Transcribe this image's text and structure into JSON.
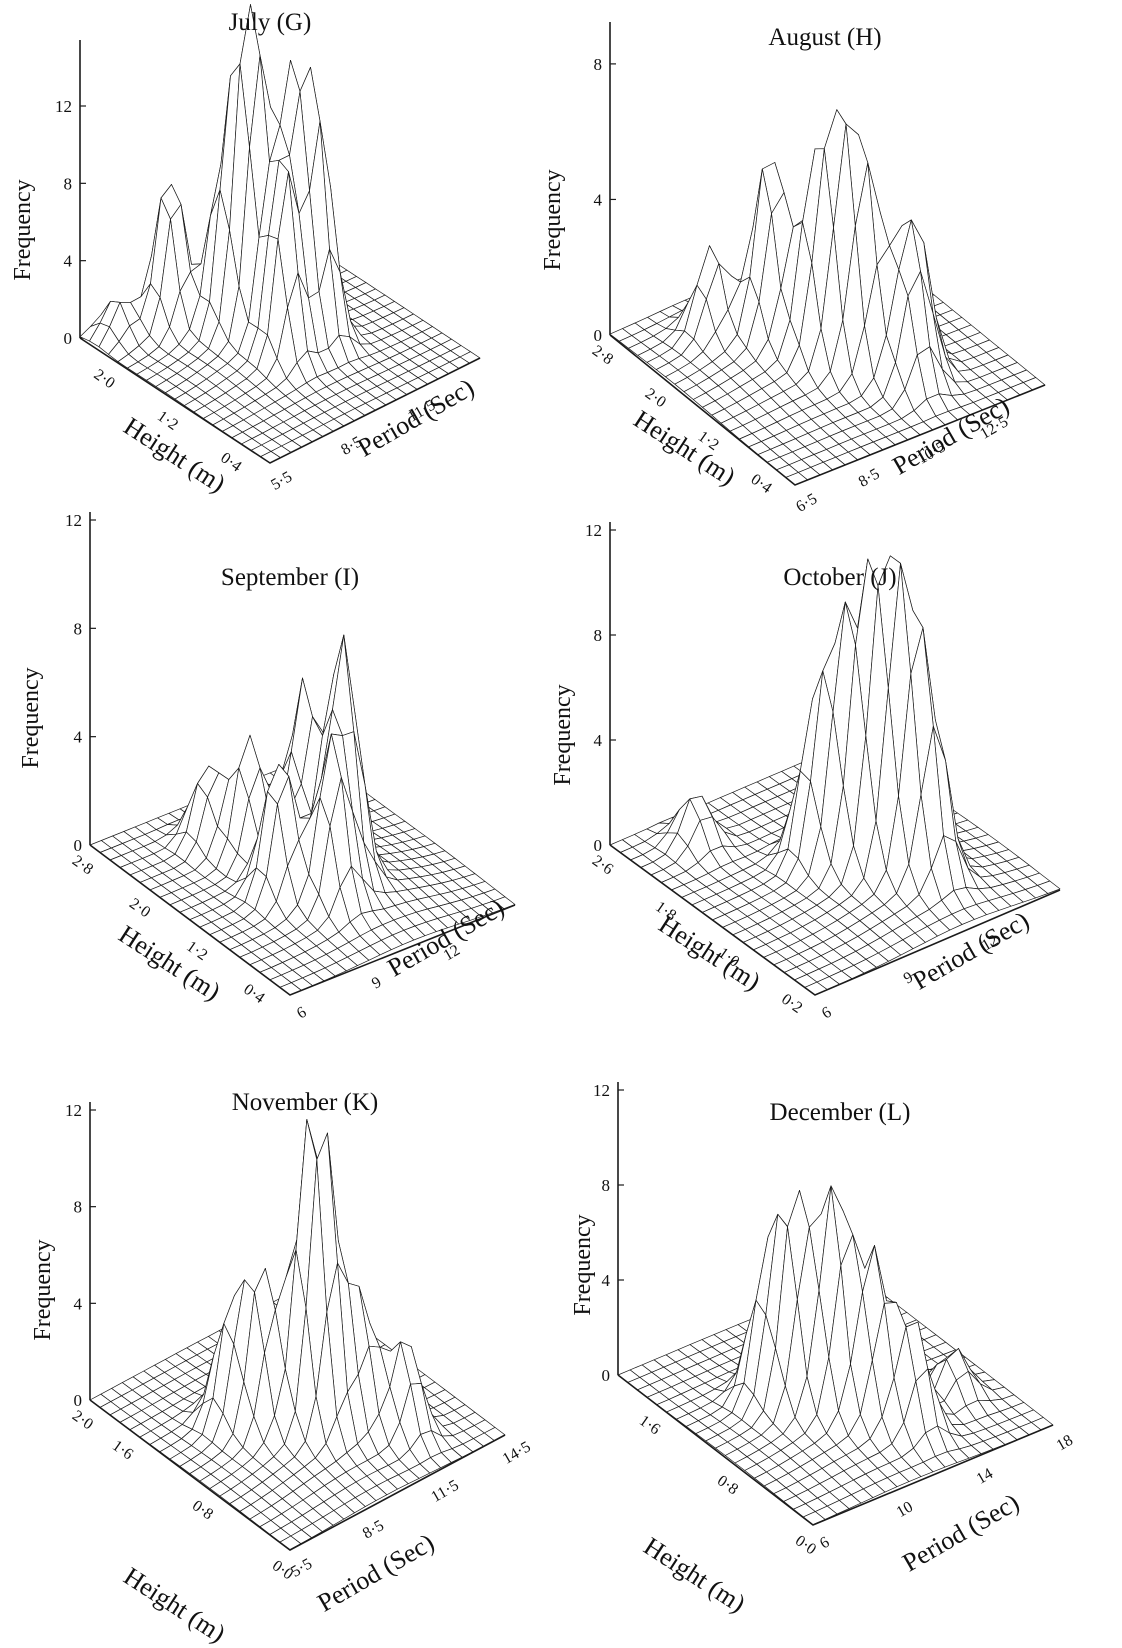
{
  "chart_data": [
    {
      "type": "surface3d",
      "title": "July (G)",
      "zlabel": "Frequency",
      "xlabel": "Height (m)",
      "ylabel": "Period (Sec)",
      "z_ticks": [
        "0",
        "4",
        "8",
        "12"
      ],
      "height_ticks": [
        "2·0",
        "1·2",
        "0·4"
      ],
      "period_ticks": [
        "5·5",
        "8·5",
        "11·5"
      ],
      "zlim": [
        0,
        15
      ],
      "height_range": [
        0.0,
        2.4
      ],
      "period_range": [
        5.5,
        14.5
      ],
      "peaks": [
        {
          "height": 1.4,
          "period": 9.5,
          "value": 15.0
        },
        {
          "height": 1.2,
          "period": 10.5,
          "value": 11.5
        },
        {
          "height": 1.0,
          "period": 11.0,
          "value": 10.5
        },
        {
          "height": 1.6,
          "period": 9.0,
          "value": 8.5
        },
        {
          "height": 2.0,
          "period": 8.0,
          "value": 8.0
        },
        {
          "height": 1.0,
          "period": 9.5,
          "value": 9.5
        },
        {
          "height": 2.2,
          "period": 6.5,
          "value": 2.0
        }
      ]
    },
    {
      "type": "surface3d",
      "title": "August (H)",
      "zlabel": "Frequency",
      "xlabel": "Height (m)",
      "ylabel": "Period (Sec)",
      "z_ticks": [
        "0",
        "4",
        "8"
      ],
      "height_ticks": [
        "2·8",
        "2·0",
        "1·2",
        "0·4"
      ],
      "period_ticks": [
        "6·5",
        "8·5",
        "10·5",
        "12·5"
      ],
      "zlim": [
        0,
        9
      ],
      "height_range": [
        0.0,
        2.8
      ],
      "period_range": [
        6.5,
        14.5
      ],
      "peaks": [
        {
          "height": 1.8,
          "period": 9.5,
          "value": 5.5
        },
        {
          "height": 1.2,
          "period": 10.5,
          "value": 5.8
        },
        {
          "height": 1.0,
          "period": 11.0,
          "value": 5.0
        },
        {
          "height": 0.8,
          "period": 12.0,
          "value": 4.0
        },
        {
          "height": 2.2,
          "period": 8.5,
          "value": 2.5
        },
        {
          "height": 1.4,
          "period": 10.0,
          "value": 4.5
        },
        {
          "height": 0.6,
          "period": 11.5,
          "value": 3.0
        }
      ]
    },
    {
      "type": "surface3d",
      "title": "September (I)",
      "zlabel": "Frequency",
      "xlabel": "Height (m)",
      "ylabel": "Period (Sec)",
      "z_ticks": [
        "0",
        "4",
        "8",
        "12"
      ],
      "height_ticks": [
        "2·8",
        "2·0",
        "1·2",
        "0·4"
      ],
      "period_ticks": [
        "6",
        "9",
        "12"
      ],
      "zlim": [
        0,
        12
      ],
      "height_range": [
        0.0,
        2.8
      ],
      "period_range": [
        6.0,
        15.0
      ],
      "peaks": [
        {
          "height": 1.0,
          "period": 11.0,
          "value": 8.5
        },
        {
          "height": 1.4,
          "period": 10.5,
          "value": 6.5
        },
        {
          "height": 1.8,
          "period": 9.5,
          "value": 4.5
        },
        {
          "height": 0.8,
          "period": 10.0,
          "value": 5.5
        },
        {
          "height": 1.2,
          "period": 9.0,
          "value": 5.0
        },
        {
          "height": 2.2,
          "period": 9.0,
          "value": 3.0
        }
      ]
    },
    {
      "type": "surface3d",
      "title": "October (J)",
      "zlabel": "Frequency",
      "xlabel": "Height (m)",
      "ylabel": "Period (Sec)",
      "z_ticks": [
        "0",
        "4",
        "8",
        "12"
      ],
      "height_ticks": [
        "2·6",
        "1·8",
        "1·0",
        "0·2"
      ],
      "period_ticks": [
        "6",
        "9",
        "12"
      ],
      "zlim": [
        0,
        12
      ],
      "height_range": [
        0.0,
        2.6
      ],
      "period_range": [
        6.0,
        15.0
      ],
      "peaks": [
        {
          "height": 0.8,
          "period": 11.5,
          "value": 9.0
        },
        {
          "height": 1.0,
          "period": 11.0,
          "value": 8.5
        },
        {
          "height": 0.6,
          "period": 12.0,
          "value": 6.0
        },
        {
          "height": 1.2,
          "period": 10.5,
          "value": 7.0
        },
        {
          "height": 1.4,
          "period": 10.0,
          "value": 5.0
        },
        {
          "height": 2.2,
          "period": 8.0,
          "value": 2.0
        }
      ]
    },
    {
      "type": "surface3d",
      "title": "November (K)",
      "zlabel": "Frequency",
      "xlabel": "Height (m)",
      "ylabel": "Period (Sec)",
      "z_ticks": [
        "0",
        "4",
        "8",
        "12"
      ],
      "height_ticks": [
        "2·0",
        "1·6",
        "0·8",
        "0·0"
      ],
      "period_ticks": [
        "5·5",
        "8·5",
        "11·5",
        "14·5"
      ],
      "zlim": [
        0,
        12
      ],
      "height_range": [
        0.0,
        2.0
      ],
      "period_range": [
        5.5,
        14.5
      ],
      "peaks": [
        {
          "height": 0.8,
          "period": 9.5,
          "value": 9.0
        },
        {
          "height": 0.7,
          "period": 10.0,
          "value": 8.5
        },
        {
          "height": 1.0,
          "period": 8.5,
          "value": 6.0
        },
        {
          "height": 0.6,
          "period": 11.0,
          "value": 5.0
        },
        {
          "height": 0.4,
          "period": 12.0,
          "value": 4.0
        },
        {
          "height": 1.2,
          "period": 8.0,
          "value": 4.5
        }
      ]
    },
    {
      "type": "surface3d",
      "title": "December (L)",
      "zlabel": "Frequency",
      "xlabel": "Height (m)",
      "ylabel": "Period (Sec)",
      "z_ticks": [
        "0",
        "4",
        "8",
        "12"
      ],
      "height_ticks": [
        "1·6",
        "0·8",
        "0·0"
      ],
      "period_ticks": [
        "6",
        "10",
        "14",
        "18"
      ],
      "zlim": [
        0,
        12
      ],
      "height_range": [
        0.0,
        2.0
      ],
      "period_range": [
        6.0,
        18.0
      ],
      "peaks": [
        {
          "height": 0.8,
          "period": 11.0,
          "value": 9.0
        },
        {
          "height": 1.0,
          "period": 10.0,
          "value": 8.0
        },
        {
          "height": 0.6,
          "period": 12.0,
          "value": 6.5
        },
        {
          "height": 1.2,
          "period": 9.5,
          "value": 5.5
        },
        {
          "height": 0.4,
          "period": 13.0,
          "value": 4.5
        },
        {
          "height": 0.6,
          "period": 16.0,
          "value": 2.0
        }
      ]
    }
  ]
}
